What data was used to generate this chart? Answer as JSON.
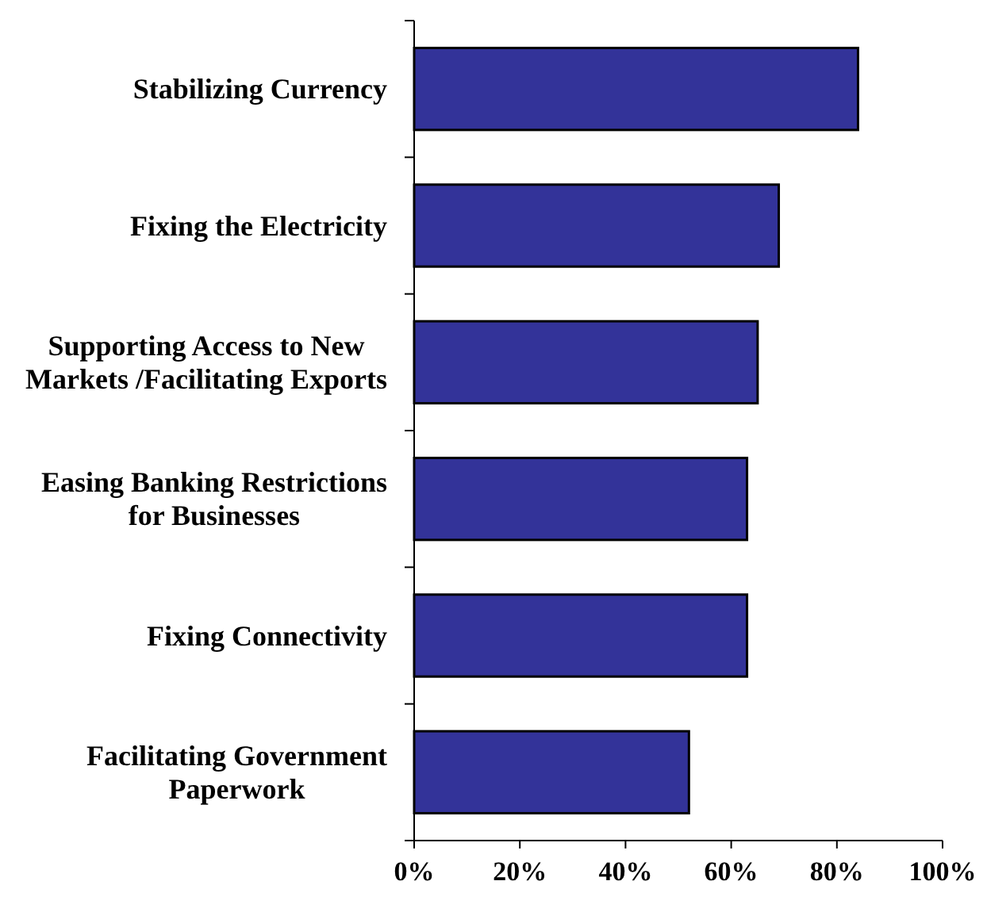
{
  "chart_data": {
    "type": "bar",
    "orientation": "horizontal",
    "categories": [
      "Stabilizing Currency",
      "Fixing the Electricity",
      "Supporting Access to New Markets /Facilitating Exports",
      "Easing Banking Restrictions for Businesses",
      "Fixing Connectivity",
      "Facilitating Government Paperwork"
    ],
    "values": [
      84,
      69,
      65,
      63,
      63,
      52
    ],
    "color": "#333399",
    "xlim": [
      0,
      100
    ],
    "xticks": [
      {
        "value": 0,
        "label": "0%"
      },
      {
        "value": 20,
        "label": "20%"
      },
      {
        "value": 40,
        "label": "40%"
      },
      {
        "value": 60,
        "label": "60%"
      },
      {
        "value": 80,
        "label": "80%"
      },
      {
        "value": 100,
        "label": "100%"
      }
    ],
    "grid": false
  }
}
